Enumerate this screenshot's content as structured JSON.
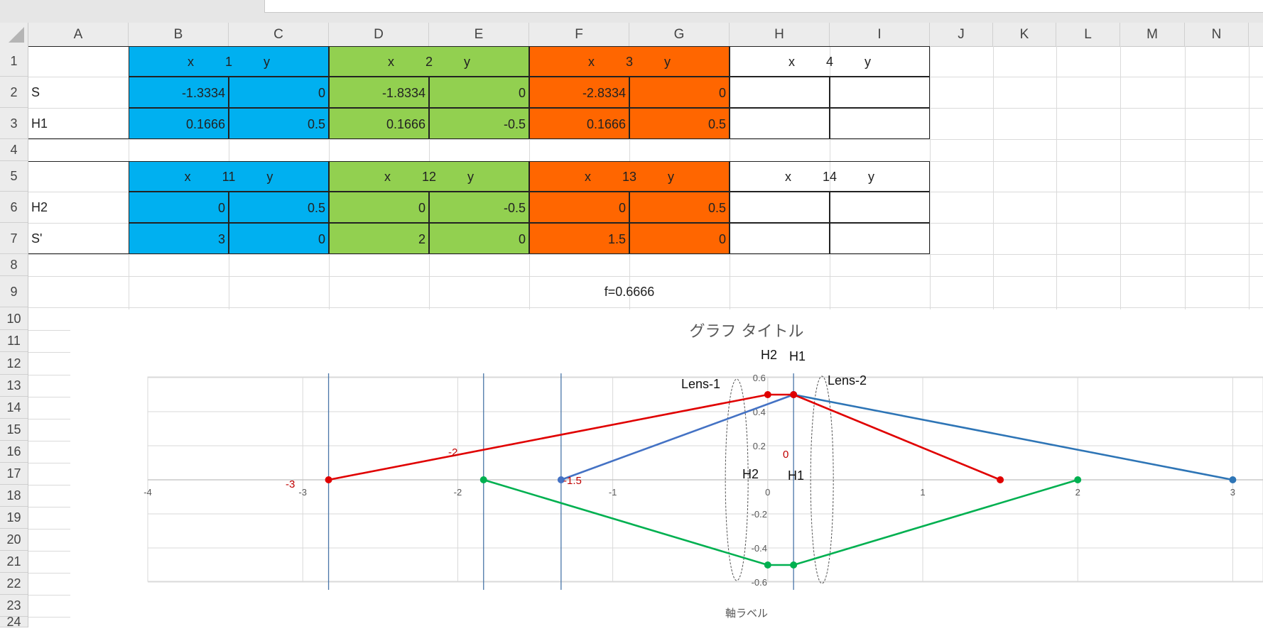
{
  "columns": [
    "A",
    "B",
    "C",
    "D",
    "E",
    "F",
    "G",
    "H",
    "I",
    "J",
    "K",
    "L",
    "M",
    "N"
  ],
  "rows": [
    "1",
    "2",
    "3",
    "4",
    "5",
    "6",
    "7",
    "8",
    "9",
    "10",
    "11",
    "12",
    "13",
    "14",
    "15",
    "16",
    "17",
    "18",
    "19",
    "20",
    "21",
    "22",
    "23",
    "24"
  ],
  "table1": {
    "headers": [
      {
        "x": "x",
        "num": "1",
        "y": "y"
      },
      {
        "x": "x",
        "num": "2",
        "y": "y"
      },
      {
        "x": "x",
        "num": "3",
        "y": "y"
      },
      {
        "x": "x",
        "num": "4",
        "y": "y"
      }
    ],
    "row_labels": [
      "S",
      "H1"
    ],
    "values": [
      [
        "-1.3334",
        "0",
        "-1.8334",
        "0",
        "-2.8334",
        "0",
        "",
        ""
      ],
      [
        "0.1666",
        "0.5",
        "0.1666",
        "-0.5",
        "0.1666",
        "0.5",
        "",
        ""
      ]
    ]
  },
  "table2": {
    "headers": [
      {
        "x": "x",
        "num": "11",
        "y": "y"
      },
      {
        "x": "x",
        "num": "12",
        "y": "y"
      },
      {
        "x": "x",
        "num": "13",
        "y": "y"
      },
      {
        "x": "x",
        "num": "14",
        "y": "y"
      }
    ],
    "row_labels": [
      "H2",
      "S'"
    ],
    "values": [
      [
        "0",
        "0.5",
        "0",
        "-0.5",
        "0",
        "0.5",
        "",
        ""
      ],
      [
        "3",
        "0",
        "2",
        "0",
        "1.5",
        "0",
        "",
        ""
      ]
    ]
  },
  "note": "f=0.6666",
  "colors": {
    "blue": "#00b0f0",
    "green": "#92d050",
    "orange": "#ff6600"
  },
  "chart_data": {
    "type": "scatter",
    "title": "グラフ タイトル",
    "xlabel": "軸ラベル",
    "ylabel": "",
    "xlim": [
      -4,
      3
    ],
    "ylim": [
      -0.6,
      0.6
    ],
    "xticks": [
      "-4",
      "-3",
      "-2",
      "-1",
      "0",
      "1",
      "2",
      "3"
    ],
    "yticks": [
      "0.6",
      "0.4",
      "0.2",
      "0",
      "-0.2",
      "-0.4",
      "-0.6"
    ],
    "grid": true,
    "series": [
      {
        "color": "#2e75b6",
        "points": [
          [
            0.1666,
            0.5
          ],
          [
            3,
            0
          ]
        ]
      },
      {
        "color": "#4472c4",
        "points": [
          [
            -1.3334,
            0
          ],
          [
            0.1666,
            0.5
          ]
        ]
      },
      {
        "color": "#e00000",
        "points": [
          [
            -2.8334,
            0
          ],
          [
            0,
            0.5
          ],
          [
            0.1666,
            0.5
          ],
          [
            1.5,
            0
          ]
        ]
      },
      {
        "color": "#00b050",
        "points": [
          [
            -1.8334,
            0
          ],
          [
            0,
            -0.5
          ],
          [
            0.1666,
            -0.5
          ],
          [
            2,
            0
          ]
        ]
      }
    ],
    "vertical_lines": [
      -2.8334,
      -1.8334,
      -1.3334,
      0.1666
    ],
    "annotations": {
      "h2_top": "H2",
      "h1_top": "H1",
      "lens1": "Lens-1",
      "lens2": "Lens-2",
      "h2_mid": "H2",
      "h1_mid": "H1",
      "mark_neg3": "-3",
      "mark_neg2": "-2",
      "mark_neg15": "-1.5",
      "mark_zero": "0"
    }
  }
}
